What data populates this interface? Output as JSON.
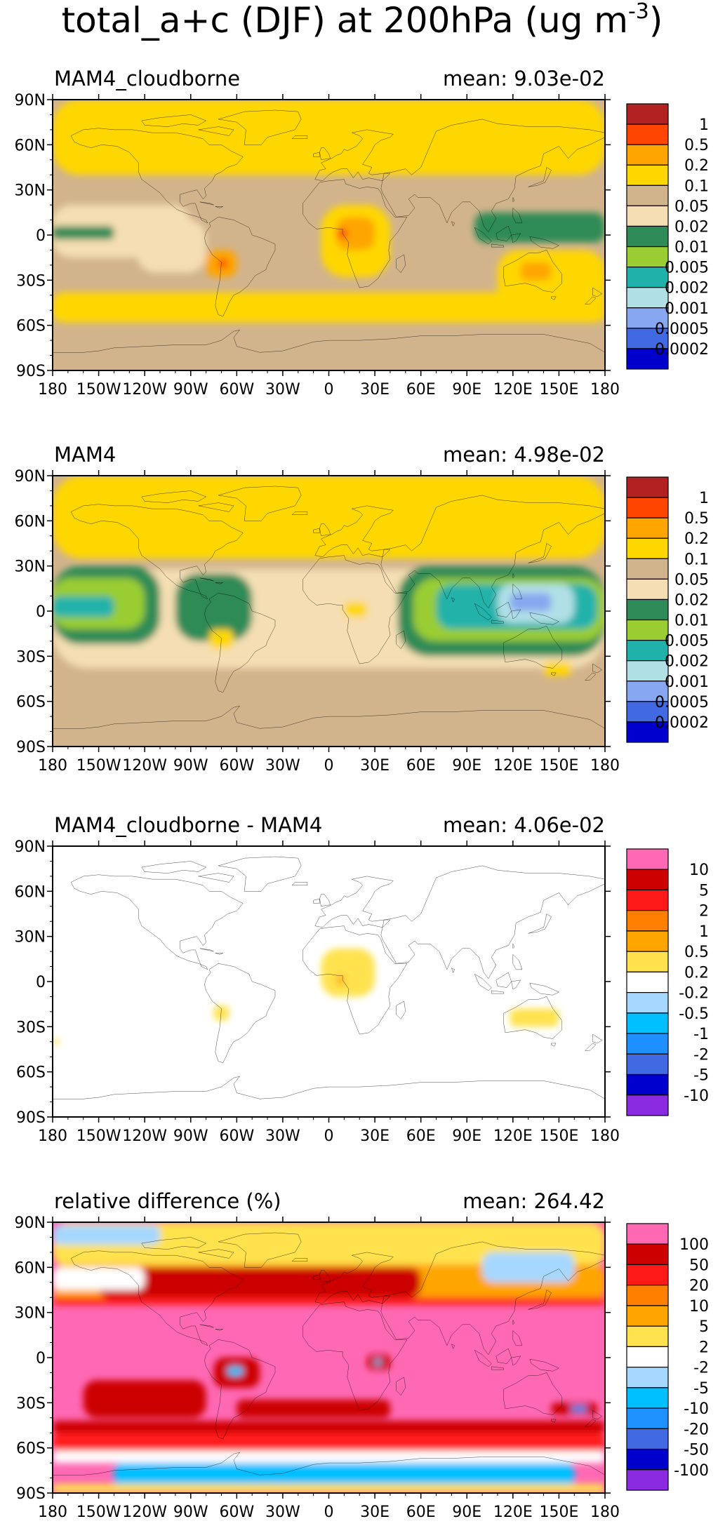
{
  "title_main": "total_a+c (DJF) at 200hPa (ug m",
  "title_sup": "-3",
  "title_close": ")",
  "chart_data": [
    {
      "type": "heatmap",
      "title": "MAM4_cloudborne",
      "mean_label": "mean: 9.03e-02",
      "xticks": [
        "180",
        "150W",
        "120W",
        "90W",
        "60W",
        "30W",
        "0",
        "30E",
        "60E",
        "90E",
        "120E",
        "150E",
        "180"
      ],
      "yticks": [
        "90N",
        "60N",
        "30N",
        "0",
        "30S",
        "60S",
        "90S"
      ],
      "xlim": [
        -180,
        180
      ],
      "ylim": [
        -90,
        90
      ],
      "colorbar": {
        "labels": [
          "1",
          "0.5",
          "0.2",
          "0.1",
          "0.05",
          "0.02",
          "0.01",
          "0.005",
          "0.002",
          "0.001",
          "0.0005",
          "0.0002"
        ],
        "colors": [
          "#b22222",
          "#ff4500",
          "#ffa500",
          "#ffd700",
          "#d2b48c",
          "#f5deb3",
          "#2e8b57",
          "#9acd32",
          "#20b2aa",
          "#b0e0e6",
          "#87a8f0",
          "#4169e1",
          "#0000cd"
        ]
      },
      "background_color": "#d2b48c",
      "regions": [
        {
          "name": "north-band",
          "color": "#ffd700",
          "lon": [
            -180,
            180
          ],
          "lat": [
            40,
            90
          ]
        },
        {
          "name": "south-band",
          "color": "#ffd700",
          "lon": [
            -180,
            180
          ],
          "lat": [
            -58,
            -38
          ]
        },
        {
          "name": "tropical-pale",
          "color": "#f5deb3",
          "lon": [
            -180,
            -90
          ],
          "lat": [
            -15,
            20
          ]
        },
        {
          "name": "east-pacific-pale",
          "color": "#f5deb3",
          "lon": [
            -125,
            -80
          ],
          "lat": [
            -25,
            10
          ]
        },
        {
          "name": "pacific-green",
          "color": "#2e8b57",
          "lon": [
            -180,
            -140
          ],
          "lat": [
            -3,
            6
          ]
        },
        {
          "name": "africa-plume",
          "color": "#ffd700",
          "lon": [
            -5,
            40
          ],
          "lat": [
            -28,
            20
          ]
        },
        {
          "name": "africa-core",
          "color": "#ffa500",
          "lon": [
            5,
            30
          ],
          "lat": [
            -10,
            12
          ]
        },
        {
          "name": "africa-max",
          "color": "#ff4500",
          "lon": [
            5,
            12
          ],
          "lat": [
            -2,
            4
          ]
        },
        {
          "name": "samerica-plume",
          "color": "#ffa500",
          "lon": [
            -80,
            -60
          ],
          "lat": [
            -28,
            -10
          ]
        },
        {
          "name": "samerica-max",
          "color": "#ff4500",
          "lon": [
            -72,
            -66
          ],
          "lat": [
            -22,
            -16
          ]
        },
        {
          "name": "australia-plume",
          "color": "#ffd700",
          "lon": [
            110,
            180
          ],
          "lat": [
            -50,
            -10
          ]
        },
        {
          "name": "australia-core",
          "color": "#ffa500",
          "lon": [
            125,
            145
          ],
          "lat": [
            -30,
            -18
          ]
        },
        {
          "name": "maritime-green",
          "color": "#2e8b57",
          "lon": [
            95,
            180
          ],
          "lat": [
            -5,
            15
          ]
        }
      ]
    },
    {
      "type": "heatmap",
      "title": "MAM4",
      "mean_label": "mean: 4.98e-02",
      "xticks": [
        "180",
        "150W",
        "120W",
        "90W",
        "60W",
        "30W",
        "0",
        "30E",
        "60E",
        "90E",
        "120E",
        "150E",
        "180"
      ],
      "yticks": [
        "90N",
        "60N",
        "30N",
        "0",
        "30S",
        "60S",
        "90S"
      ],
      "xlim": [
        -180,
        180
      ],
      "ylim": [
        -90,
        90
      ],
      "colorbar": {
        "labels": [
          "1",
          "0.5",
          "0.2",
          "0.1",
          "0.05",
          "0.02",
          "0.01",
          "0.005",
          "0.002",
          "0.001",
          "0.0005",
          "0.0002"
        ],
        "colors": [
          "#b22222",
          "#ff4500",
          "#ffa500",
          "#ffd700",
          "#d2b48c",
          "#f5deb3",
          "#2e8b57",
          "#9acd32",
          "#20b2aa",
          "#b0e0e6",
          "#87a8f0",
          "#4169e1",
          "#0000cd"
        ]
      },
      "background_color": "#d2b48c",
      "regions": [
        {
          "name": "north-band",
          "color": "#ffd700",
          "lon": [
            -180,
            180
          ],
          "lat": [
            35,
            90
          ]
        },
        {
          "name": "tropical-pale",
          "color": "#f5deb3",
          "lon": [
            -180,
            180
          ],
          "lat": [
            -38,
            28
          ]
        },
        {
          "name": "pacific-green",
          "color": "#2e8b57",
          "lon": [
            -180,
            -110
          ],
          "lat": [
            -22,
            30
          ]
        },
        {
          "name": "pacific-yellowgreen",
          "color": "#9acd32",
          "lon": [
            -180,
            -120
          ],
          "lat": [
            -12,
            22
          ]
        },
        {
          "name": "pacific-teal",
          "color": "#20b2aa",
          "lon": [
            -180,
            -140
          ],
          "lat": [
            -4,
            10
          ]
        },
        {
          "name": "atlantic-green",
          "color": "#2e8b57",
          "lon": [
            -100,
            -50
          ],
          "lat": [
            -20,
            25
          ]
        },
        {
          "name": "indian-green",
          "color": "#2e8b57",
          "lon": [
            45,
            180
          ],
          "lat": [
            -30,
            30
          ]
        },
        {
          "name": "indian-yellowgreen",
          "color": "#9acd32",
          "lon": [
            55,
            180
          ],
          "lat": [
            -20,
            22
          ]
        },
        {
          "name": "indian-teal",
          "color": "#20b2aa",
          "lon": [
            70,
            175
          ],
          "lat": [
            -12,
            18
          ]
        },
        {
          "name": "wpac-pale",
          "color": "#b0e0e6",
          "lon": [
            110,
            160
          ],
          "lat": [
            -8,
            18
          ]
        },
        {
          "name": "wpac-blue",
          "color": "#87a8f0",
          "lon": [
            118,
            145
          ],
          "lat": [
            0,
            12
          ]
        },
        {
          "name": "samerica-spot",
          "color": "#ffd700",
          "lon": [
            -78,
            -62
          ],
          "lat": [
            -25,
            -12
          ]
        },
        {
          "name": "africa-spot",
          "color": "#ffd700",
          "lon": [
            10,
            25
          ],
          "lat": [
            -4,
            6
          ]
        },
        {
          "name": "australia-spot",
          "color": "#ffd700",
          "lon": [
            140,
            158
          ],
          "lat": [
            -43,
            -34
          ]
        }
      ]
    },
    {
      "type": "heatmap",
      "title": "MAM4_cloudborne - MAM4",
      "mean_label": "mean: 4.06e-02",
      "xticks": [
        "180",
        "150W",
        "120W",
        "90W",
        "60W",
        "30W",
        "0",
        "30E",
        "60E",
        "90E",
        "120E",
        "150E",
        "180"
      ],
      "yticks": [
        "90N",
        "60N",
        "30N",
        "0",
        "30S",
        "60S",
        "90S"
      ],
      "xlim": [
        -180,
        180
      ],
      "ylim": [
        -90,
        90
      ],
      "colorbar": {
        "labels": [
          "10",
          "5",
          "2",
          "1",
          "0.5",
          "0.2",
          "-0.2",
          "-0.5",
          "-1",
          "-2",
          "-5",
          "-10"
        ],
        "colors": [
          "#ff69b4",
          "#cc0000",
          "#ff1a1a",
          "#ff7f00",
          "#ffa500",
          "#ffe24d",
          "#ffffff",
          "#a6d8ff",
          "#00bfff",
          "#1e90ff",
          "#4169e1",
          "#0000cd",
          "#8a2be2"
        ]
      },
      "background_color": "#ffffff",
      "regions": [
        {
          "name": "africa-diff",
          "color": "#ffe24d",
          "lon": [
            -5,
            30
          ],
          "lat": [
            -10,
            22
          ]
        },
        {
          "name": "africa-diff-core",
          "color": "#ffa500",
          "lon": [
            5,
            10
          ],
          "lat": [
            -2,
            4
          ]
        },
        {
          "name": "samerica-diff",
          "color": "#ffe24d",
          "lon": [
            -75,
            -65
          ],
          "lat": [
            -26,
            -16
          ]
        },
        {
          "name": "australia-diff",
          "color": "#ffe24d",
          "lon": [
            118,
            150
          ],
          "lat": [
            -30,
            -18
          ]
        },
        {
          "name": "pacific-diff",
          "color": "#ffe24d",
          "lon": [
            -180,
            -176
          ],
          "lat": [
            -42,
            -38
          ]
        }
      ]
    },
    {
      "type": "heatmap",
      "title": "relative difference (%)",
      "mean_label": "mean: 264.42",
      "xticks": [
        "180",
        "150W",
        "120W",
        "90W",
        "60W",
        "30W",
        "0",
        "30E",
        "60E",
        "90E",
        "120E",
        "150E",
        "180"
      ],
      "yticks": [
        "90N",
        "60N",
        "30N",
        "0",
        "30S",
        "60S",
        "90S"
      ],
      "xlim": [
        -180,
        180
      ],
      "ylim": [
        -90,
        90
      ],
      "colorbar": {
        "labels": [
          "100",
          "50",
          "20",
          "10",
          "5",
          "2",
          "-2",
          "-5",
          "-10",
          "-20",
          "-50",
          "-100"
        ],
        "colors": [
          "#ff69b4",
          "#cc0000",
          "#ff1a1a",
          "#ff7f00",
          "#ffa500",
          "#ffe24d",
          "#ffffff",
          "#a6d8ff",
          "#00bfff",
          "#1e90ff",
          "#4169e1",
          "#0000cd",
          "#8a2be2"
        ]
      },
      "background_color": "#ff69b4",
      "regions": [
        {
          "name": "arctic-yellow",
          "color": "#ffe24d",
          "lon": [
            -180,
            180
          ],
          "lat": [
            60,
            90
          ]
        },
        {
          "name": "nh-orange",
          "color": "#ffa500",
          "lon": [
            -180,
            180
          ],
          "lat": [
            38,
            62
          ]
        },
        {
          "name": "nh-red",
          "color": "#ff1a1a",
          "lon": [
            -180,
            180
          ],
          "lat": [
            35,
            40
          ]
        },
        {
          "name": "nh-darkred",
          "color": "#cc0000",
          "lon": [
            -150,
            60
          ],
          "lat": [
            40,
            60
          ]
        },
        {
          "name": "nh-white",
          "color": "#ffffff",
          "lon": [
            -180,
            -120
          ],
          "lat": [
            45,
            60
          ]
        },
        {
          "name": "nh-lightblue",
          "color": "#a6d8ff",
          "lon": [
            100,
            160
          ],
          "lat": [
            50,
            70
          ]
        },
        {
          "name": "arctic-lightblue",
          "color": "#a6d8ff",
          "lon": [
            -180,
            -110
          ],
          "lat": [
            75,
            88
          ]
        },
        {
          "name": "so-red",
          "color": "#ff1a1a",
          "lon": [
            -180,
            180
          ],
          "lat": [
            -62,
            -50
          ]
        },
        {
          "name": "so-darkred",
          "color": "#cc0000",
          "lon": [
            -180,
            180
          ],
          "lat": [
            -50,
            -42
          ]
        },
        {
          "name": "so-white",
          "color": "#ffffff",
          "lon": [
            -180,
            180
          ],
          "lat": [
            -70,
            -62
          ]
        },
        {
          "name": "so-blue",
          "color": "#00bfff",
          "lon": [
            -140,
            160
          ],
          "lat": [
            -86,
            -70
          ]
        },
        {
          "name": "so-yellow",
          "color": "#ffe24d",
          "lon": [
            -180,
            180
          ],
          "lat": [
            -90,
            -84
          ]
        },
        {
          "name": "spac-darkred",
          "color": "#cc0000",
          "lon": [
            -160,
            -80
          ],
          "lat": [
            -40,
            -15
          ]
        },
        {
          "name": "satl-darkred",
          "color": "#cc0000",
          "lon": [
            -60,
            40
          ],
          "lat": [
            -40,
            -28
          ]
        },
        {
          "name": "amazon-red",
          "color": "#cc0000",
          "lon": [
            -75,
            -45
          ],
          "lat": [
            -20,
            0
          ]
        },
        {
          "name": "amazon-blue",
          "color": "#00bfff",
          "lon": [
            -66,
            -56
          ],
          "lat": [
            -12,
            -6
          ]
        },
        {
          "name": "africa-red",
          "color": "#cc0000",
          "lon": [
            25,
            40
          ],
          "lat": [
            -8,
            2
          ]
        },
        {
          "name": "africa-blue",
          "color": "#00bfff",
          "lon": [
            30,
            34
          ],
          "lat": [
            -5,
            -1
          ]
        },
        {
          "name": "ausse-red",
          "color": "#cc0000",
          "lon": [
            145,
            175
          ],
          "lat": [
            -38,
            -30
          ]
        },
        {
          "name": "ausse-blue",
          "color": "#1e90ff",
          "lon": [
            158,
            168
          ],
          "lat": [
            -36,
            -32
          ]
        }
      ]
    }
  ]
}
